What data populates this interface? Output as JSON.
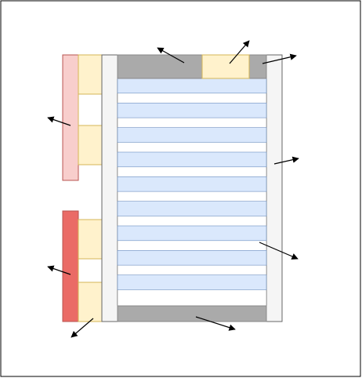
{
  "diagram": {
    "type": "schematic-layout-with-arrows",
    "colors": {
      "frame": "#000000",
      "background": "#ffffff",
      "pink": "#f8cecc",
      "pink_stroke": "#b85450",
      "red": "#ea6b66",
      "red_stroke": "#b85450",
      "yellow": "#fff2cc",
      "yellow_stroke": "#d6b656",
      "gray": "#aaaaaa",
      "gray_stroke": "#888888",
      "light_gray": "#f5f5f5",
      "light_gray_stroke": "#666666",
      "blue": "#dae8fc",
      "blue_stroke": "#6c8ebf",
      "arrow": "#000000"
    },
    "blue_stripes": 9,
    "arrow_count": 9
  }
}
